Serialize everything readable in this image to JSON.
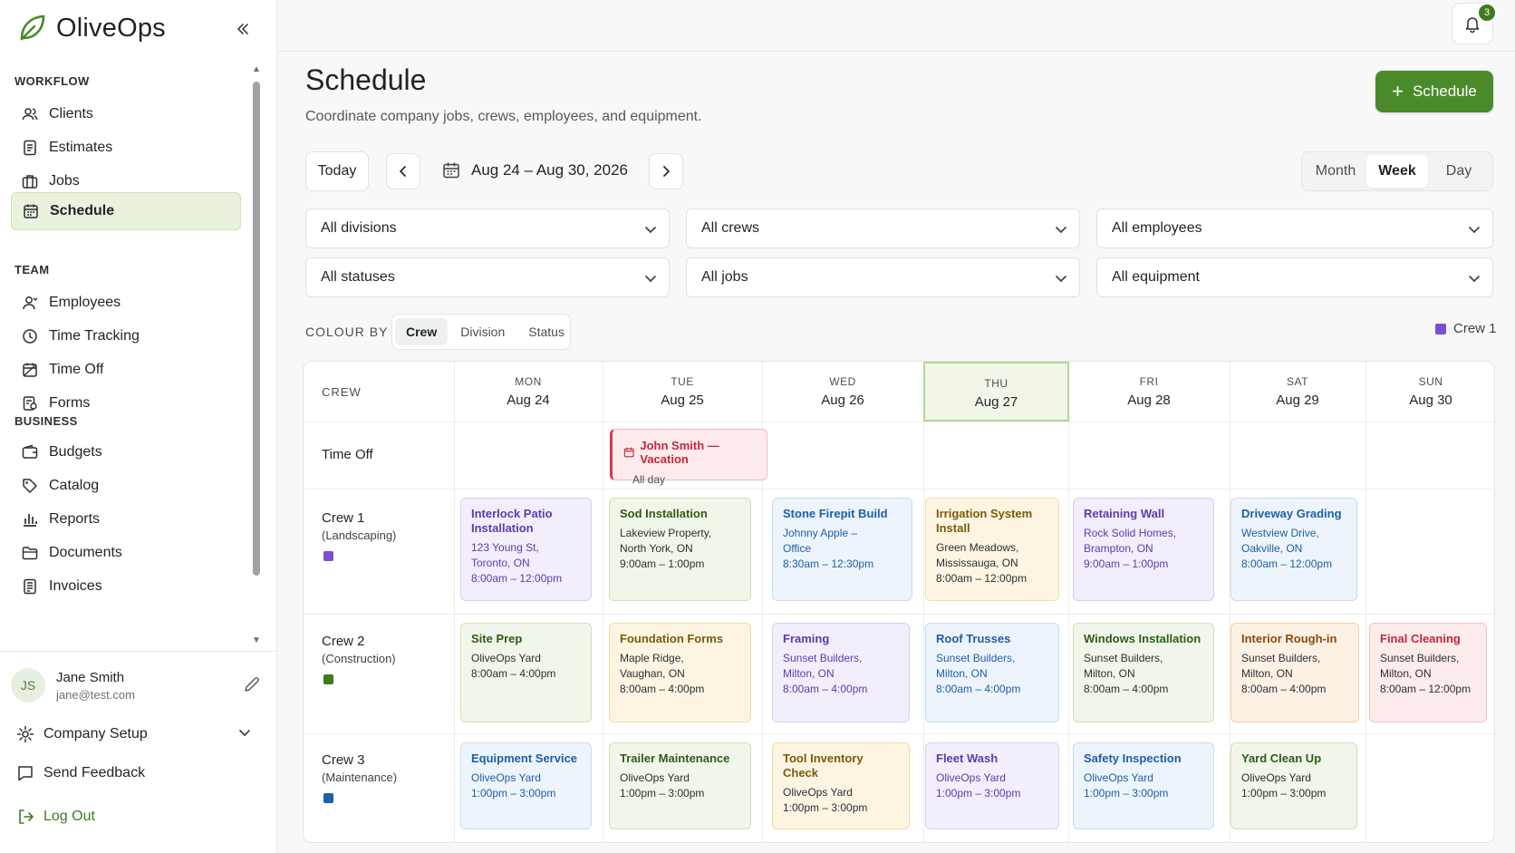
{
  "app": {
    "name": "OliveOps"
  },
  "sidebar": {
    "sections": [
      {
        "label": "WORKFLOW",
        "items": [
          {
            "label": "Clients",
            "icon": "users-icon"
          },
          {
            "label": "Estimates",
            "icon": "document-icon"
          },
          {
            "label": "Jobs",
            "icon": "briefcase-icon"
          },
          {
            "label": "Schedule",
            "icon": "calendar-icon",
            "active": true
          }
        ]
      },
      {
        "label": "TEAM",
        "items": [
          {
            "label": "Employees",
            "icon": "user-icon"
          },
          {
            "label": "Time Tracking",
            "icon": "clock-icon"
          },
          {
            "label": "Time Off",
            "icon": "calendar-off-icon"
          },
          {
            "label": "Forms",
            "icon": "form-icon"
          }
        ]
      },
      {
        "label": "BUSINESS",
        "items": [
          {
            "label": "Budgets",
            "icon": "wallet-icon"
          },
          {
            "label": "Catalog",
            "icon": "tag-icon"
          },
          {
            "label": "Reports",
            "icon": "bar-chart-icon"
          },
          {
            "label": "Documents",
            "icon": "folder-icon"
          },
          {
            "label": "Invoices",
            "icon": "receipt-icon"
          }
        ]
      }
    ],
    "user": {
      "initials": "JS",
      "name": "Jane Smith",
      "email": "jane@test.com"
    },
    "company_setup": "Company Setup",
    "send_feedback": "Send Feedback",
    "log_out": "Log Out"
  },
  "header": {
    "notification_count": "3"
  },
  "page": {
    "title": "Schedule",
    "subtitle": "Coordinate company jobs, crews, employees, and equipment.",
    "primary_button": "Schedule",
    "today": "Today",
    "date_range": "Aug 24 – Aug 30, 2026",
    "views": [
      "Month",
      "Week",
      "Day"
    ],
    "active_view": "Week"
  },
  "filters": {
    "divisions": "All divisions",
    "crews": "All crews",
    "employees": "All employees",
    "statuses": "All statuses",
    "jobs": "All jobs",
    "equipment": "All equipment"
  },
  "colour_by": {
    "label": "COLOUR BY",
    "options": [
      "Crew",
      "Division",
      "Status"
    ],
    "active": "Crew",
    "legend": {
      "label": "Crew 1",
      "color": "#7c4fd0"
    }
  },
  "calendar": {
    "crew_header": "CREW",
    "days": [
      {
        "dow": "MON",
        "date": "Aug 24"
      },
      {
        "dow": "TUE",
        "date": "Aug 25"
      },
      {
        "dow": "WED",
        "date": "Aug 26"
      },
      {
        "dow": "THU",
        "date": "Aug 27",
        "today": true
      },
      {
        "dow": "FRI",
        "date": "Aug 28"
      },
      {
        "dow": "SAT",
        "date": "Aug 29"
      },
      {
        "dow": "SUN",
        "date": "Aug 30"
      }
    ],
    "time_off_label": "Time Off",
    "vacation": {
      "title": "John Smith — Vacation",
      "subtitle": "All day"
    },
    "crews": [
      {
        "name": "Crew 1",
        "sub": "(Landscaping)",
        "color": "#7c4fd0"
      },
      {
        "name": "Crew 2",
        "sub": "(Construction)",
        "color": "#3f7a22"
      },
      {
        "name": "Crew 3",
        "sub": "(Maintenance)",
        "color": "#1d5fa8"
      }
    ],
    "events": {
      "crew1": [
        {
          "title": "Interlock Patio Installation",
          "lines": [
            "123 Young St,",
            "Toronto, ON",
            "8:00am – 12:00pm"
          ]
        },
        {
          "title": "Sod Installation",
          "lines": [
            "Lakeview Property,",
            "North York, ON",
            "9:00am – 1:00pm"
          ]
        },
        {
          "title": "Stone Firepit Build",
          "lines": [
            "Johnny Apple –",
            "Office",
            "8:30am – 12:30pm"
          ]
        },
        {
          "title": "Irrigation System Install",
          "lines": [
            "Green Meadows,",
            "Mississauga, ON",
            "8:00am – 12:00pm"
          ]
        },
        {
          "title": "Retaining Wall",
          "lines": [
            "Rock Solid Homes,",
            "Brampton, ON",
            "9:00am – 1:00pm"
          ]
        },
        {
          "title": "Driveway Grading",
          "lines": [
            "Westview Drive,",
            "Oakville, ON",
            "8:00am – 12:00pm"
          ]
        }
      ],
      "crew2": [
        {
          "title": "Site Prep",
          "lines": [
            "OliveOps Yard",
            "8:00am – 4:00pm"
          ]
        },
        {
          "title": "Foundation Forms",
          "lines": [
            "Maple Ridge,",
            "Vaughan, ON",
            "8:00am – 4:00pm"
          ]
        },
        {
          "title": "Framing",
          "lines": [
            "Sunset Builders,",
            "Milton, ON",
            "8:00am – 4:00pm"
          ]
        },
        {
          "title": "Roof Trusses",
          "lines": [
            "Sunset Builders,",
            "Milton, ON",
            "8:00am – 4:00pm"
          ]
        },
        {
          "title": "Windows Installation",
          "lines": [
            "Sunset Builders,",
            "Milton, ON",
            "8:00am – 4:00pm"
          ]
        },
        {
          "title": "Interior Rough-in",
          "lines": [
            "Sunset Builders,",
            "Milton, ON",
            "8:00am – 4:00pm"
          ]
        },
        {
          "title": "Final Cleaning",
          "lines": [
            "Sunset Builders,",
            "Milton, ON",
            "8:00am – 12:00pm"
          ]
        }
      ],
      "crew3": [
        {
          "title": "Equipment Service",
          "lines": [
            "OliveOps Yard",
            "1:00pm – 3:00pm"
          ]
        },
        {
          "title": "Trailer Maintenance",
          "lines": [
            "OliveOps Yard",
            "1:00pm – 3:00pm"
          ]
        },
        {
          "title": "Tool Inventory Check",
          "lines": [
            "OliveOps Yard",
            "1:00pm – 3:00pm"
          ]
        },
        {
          "title": "Fleet Wash",
          "lines": [
            "OliveOps Yard",
            "1:00pm – 3:00pm"
          ]
        },
        {
          "title": "Safety Inspection",
          "lines": [
            "OliveOps Yard",
            "1:00pm – 3:00pm"
          ]
        },
        {
          "title": "Yard Clean Up",
          "lines": [
            "OliveOps Yard",
            "1:00pm – 3:00pm"
          ]
        }
      ]
    }
  }
}
